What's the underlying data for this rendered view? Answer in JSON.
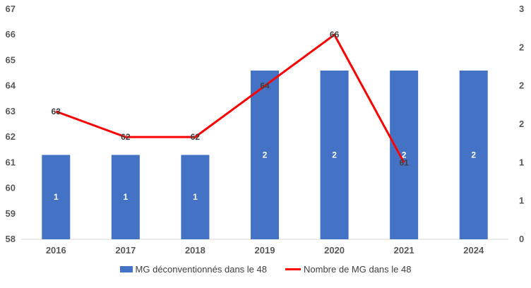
{
  "chart_data": {
    "type": "bar",
    "categories": [
      "2016",
      "2017",
      "2018",
      "2019",
      "2020",
      "2021",
      "2024"
    ],
    "series": [
      {
        "name": "MG déconventionnés dans le 48",
        "type": "bar",
        "axis": "right",
        "values": [
          1,
          1,
          1,
          2,
          2,
          2,
          2
        ],
        "labels": [
          "1",
          "1",
          "1",
          "2",
          "2",
          "2",
          "2"
        ],
        "color": "#4472c4"
      },
      {
        "name": "Nombre de MG dans le 48",
        "type": "line",
        "axis": "left",
        "values": [
          63,
          62,
          62,
          64,
          66,
          61,
          null
        ],
        "labels": [
          "63",
          "62",
          "62",
          "64",
          "66",
          "61",
          ""
        ],
        "color": "#ff0000"
      }
    ],
    "left_axis": {
      "ylim": [
        58,
        67
      ],
      "ticks": [
        "58",
        "59",
        "60",
        "61",
        "62",
        "63",
        "64",
        "65",
        "66",
        "67"
      ]
    },
    "right_axis": {
      "ylim": [
        0,
        3
      ],
      "ticks": [
        "0",
        "1",
        "1",
        "2",
        "2",
        "2",
        "3"
      ]
    },
    "legend_position": "bottom",
    "grid": false
  },
  "legend": {
    "bar_label": "MG déconventionnés dans le 48",
    "line_label": "Nombre de MG dans le 48"
  }
}
